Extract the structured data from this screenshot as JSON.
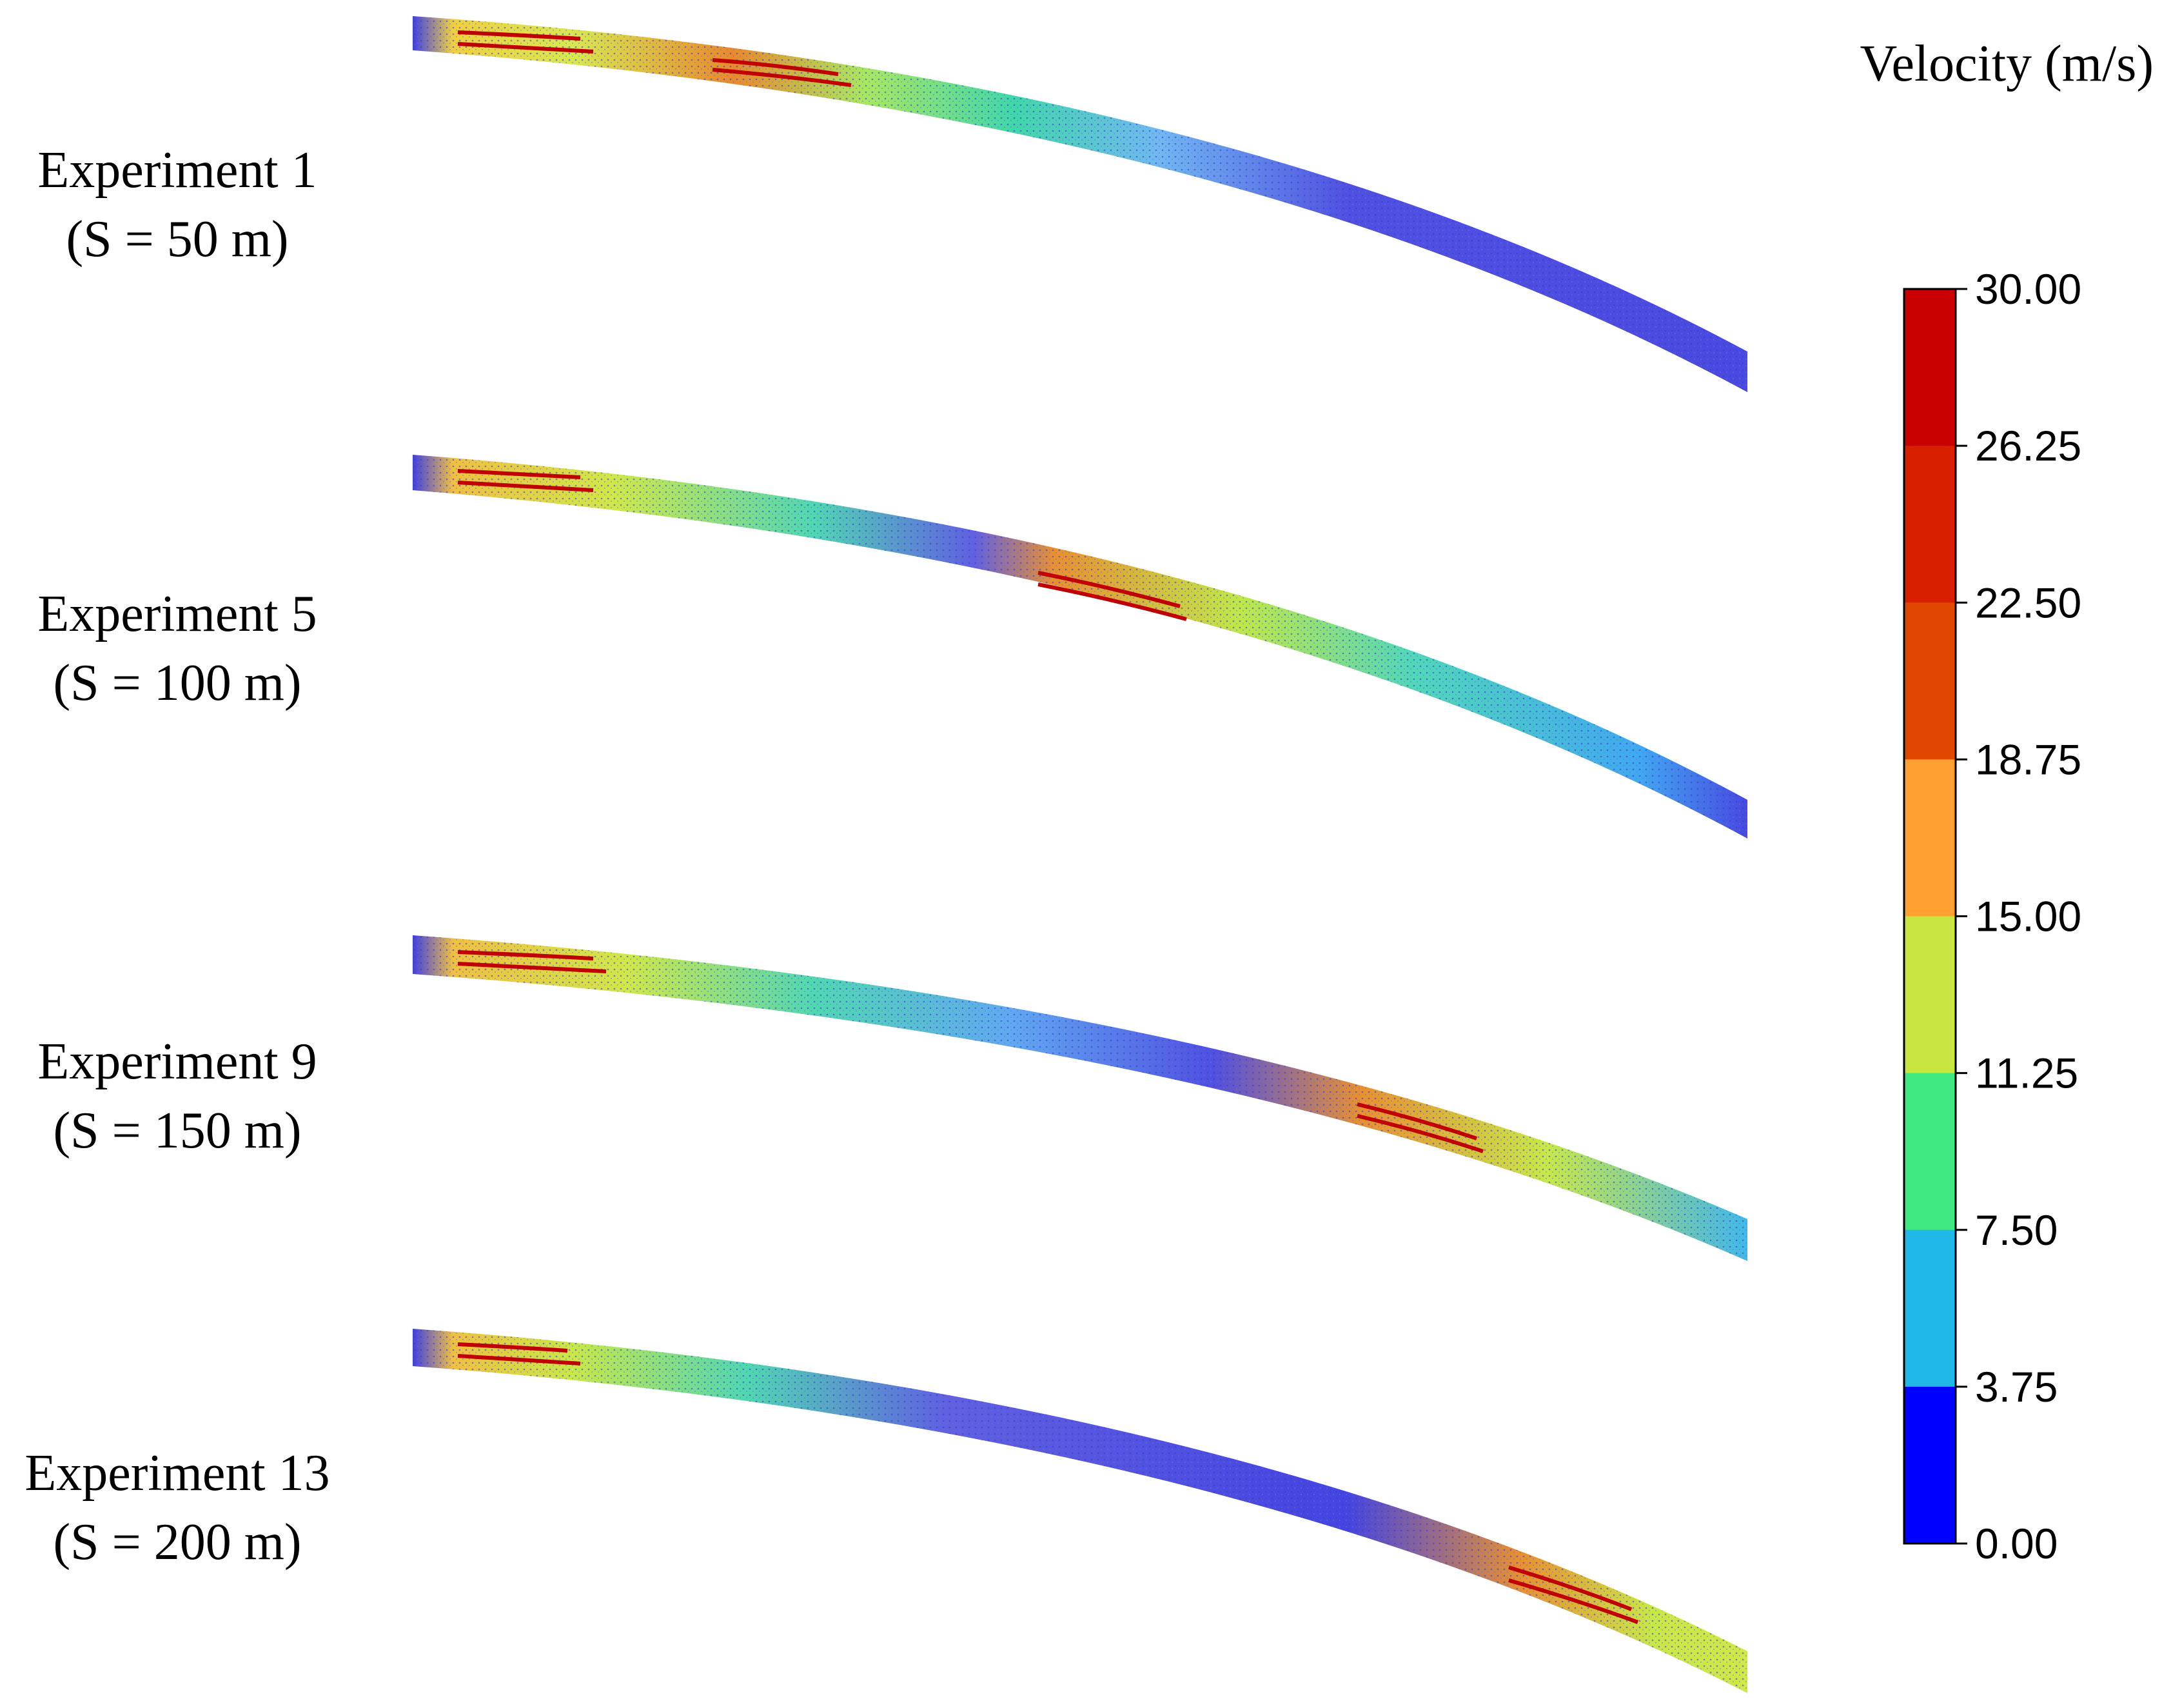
{
  "experiments": [
    {
      "title": "Experiment 1",
      "spacing": "(S = 50 m)",
      "jet_fan_position": 0.22
    },
    {
      "title": "Experiment 5",
      "spacing": "(S = 100 m)",
      "jet_fan_position": 0.47
    },
    {
      "title": "Experiment 9",
      "spacing": "(S = 150 m)",
      "jet_fan_position": 0.71
    },
    {
      "title": "Experiment 13",
      "spacing": "(S = 200 m)",
      "jet_fan_position": 0.83
    }
  ],
  "legend": {
    "title": "Velocity (m/s)",
    "ticks": [
      "30.00",
      "26.25",
      "22.50",
      "18.75",
      "15.00",
      "11.25",
      "7.50",
      "3.75",
      "0.00"
    ],
    "colors": [
      "#c80000",
      "#d82000",
      "#e04800",
      "#ffa030",
      "#c8e640",
      "#40e880",
      "#20b8e8",
      "#0000ff"
    ]
  }
}
